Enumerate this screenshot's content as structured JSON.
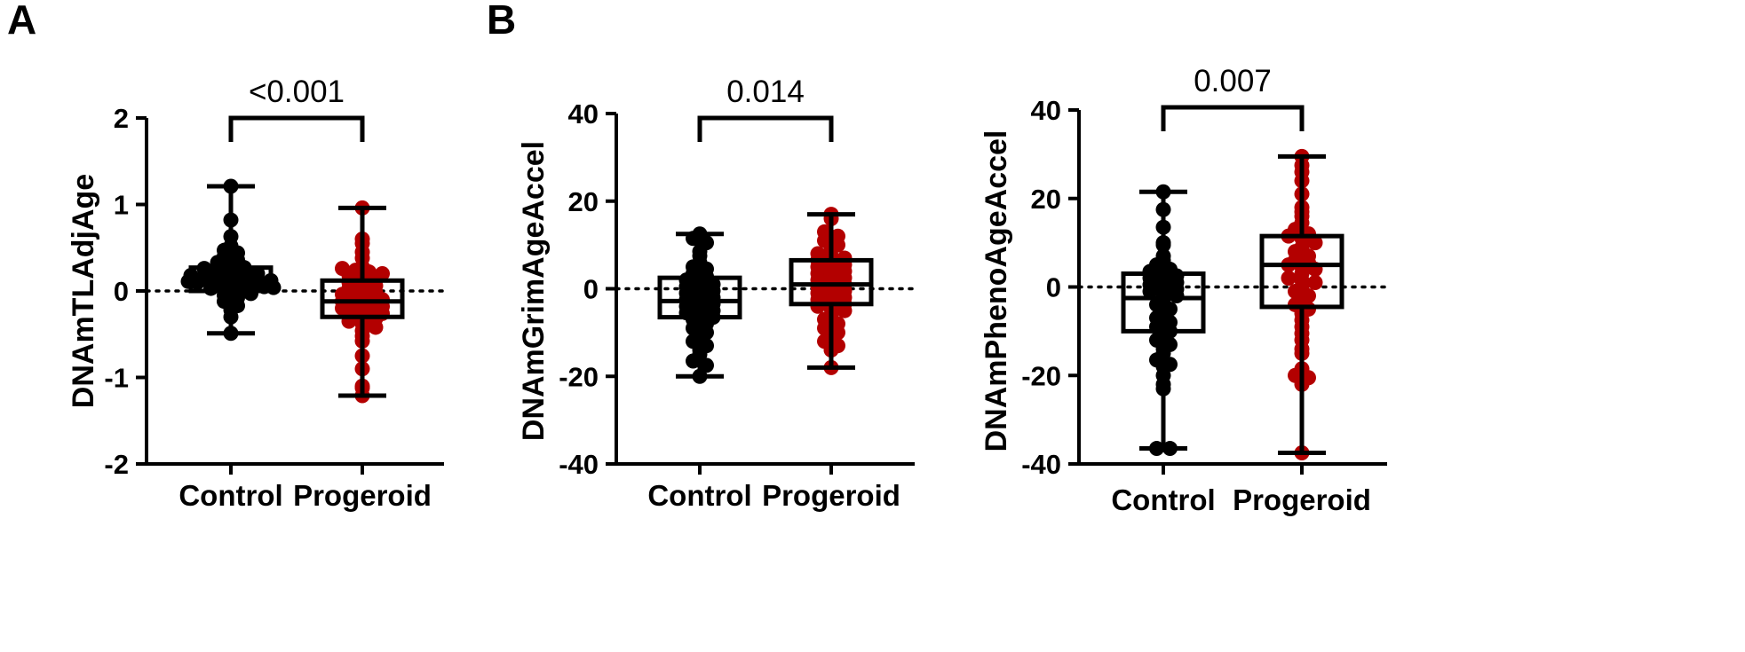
{
  "panel_letters": [
    "A",
    "B"
  ],
  "colors": {
    "control": "#000000",
    "progeroid": "#b30000",
    "axis": "#000000"
  },
  "chart_data": [
    {
      "type": "scatter",
      "subtype": "box-and-dot",
      "panel": "A",
      "ylabel": "DNAmTLAdjAge",
      "ylim": [
        -2,
        2
      ],
      "yticks": [
        -2,
        -1,
        0,
        1,
        2
      ],
      "ytick_labels": [
        "-2",
        "-1",
        "0",
        "1",
        "2"
      ],
      "reference_line": 0,
      "categories": [
        "Control",
        "Progeroid"
      ],
      "pvalue": "<0.001",
      "series": [
        {
          "name": "Control",
          "box": {
            "min": -0.49,
            "q1": 0.0,
            "median": 0.12,
            "q3": 0.27,
            "max": 1.21
          },
          "points": [
            1.21,
            0.82,
            0.63,
            0.52,
            0.47,
            0.44,
            0.4,
            0.36,
            0.33,
            0.3,
            0.27,
            0.26,
            0.24,
            0.22,
            0.21,
            0.2,
            0.18,
            0.17,
            0.16,
            0.15,
            0.14,
            0.13,
            0.12,
            0.11,
            0.1,
            0.09,
            0.08,
            0.07,
            0.06,
            0.05,
            0.04,
            0.03,
            0.01,
            -0.01,
            -0.03,
            -0.05,
            -0.08,
            -0.12,
            -0.17,
            -0.22,
            -0.3,
            -0.49
          ]
        },
        {
          "name": "Progeroid",
          "box": {
            "min": -1.21,
            "q1": -0.3,
            "median": -0.12,
            "q3": 0.12,
            "max": 0.96
          },
          "points": [
            0.96,
            0.6,
            0.55,
            0.45,
            0.38,
            0.28,
            0.26,
            0.24,
            0.22,
            0.2,
            0.18,
            0.15,
            0.13,
            0.1,
            0.08,
            0.06,
            0.03,
            0.01,
            -0.02,
            -0.04,
            -0.06,
            -0.08,
            -0.1,
            -0.12,
            -0.14,
            -0.16,
            -0.18,
            -0.2,
            -0.22,
            -0.24,
            -0.26,
            -0.28,
            -0.3,
            -0.32,
            -0.35,
            -0.38,
            -0.42,
            -0.46,
            -0.52,
            -0.58,
            -0.75,
            -0.9,
            -1.1,
            -1.12,
            -1.21
          ]
        }
      ]
    },
    {
      "type": "scatter",
      "subtype": "box-and-dot",
      "panel": "B",
      "ylabel": "DNAmGrimAgeAccel",
      "ylim": [
        -40,
        40
      ],
      "yticks": [
        -40,
        -20,
        0,
        20,
        40
      ],
      "ytick_labels": [
        "-40",
        "-20",
        "0",
        "20",
        "40"
      ],
      "reference_line": 0,
      "categories": [
        "Control",
        "Progeroid"
      ],
      "pvalue": "0.014",
      "series": [
        {
          "name": "Control",
          "box": {
            "min": -20,
            "q1": -6.5,
            "median": -2.8,
            "q3": 2.5,
            "max": 12.5
          },
          "points": [
            12.5,
            11.5,
            10.5,
            8.5,
            7.5,
            6.0,
            5.0,
            4.5,
            3.5,
            2.8,
            2.0,
            1.5,
            1.0,
            0.5,
            0.0,
            -0.5,
            -1.0,
            -1.5,
            -2.0,
            -2.5,
            -3.0,
            -3.5,
            -4.0,
            -4.5,
            -5.0,
            -5.5,
            -6.0,
            -6.5,
            -7.0,
            -8.0,
            -9.0,
            -10.0,
            -11.0,
            -12.0,
            -13.0,
            -14.0,
            -15.0,
            -16.5,
            -17.5,
            -20.0
          ]
        },
        {
          "name": "Progeroid",
          "box": {
            "min": -18,
            "q1": -3.5,
            "median": 1.0,
            "q3": 6.5,
            "max": 17
          },
          "points": [
            17.0,
            16.0,
            13.0,
            12.0,
            11.0,
            10.0,
            9.0,
            8.0,
            7.5,
            7.0,
            6.5,
            6.0,
            5.5,
            5.0,
            4.5,
            4.0,
            3.5,
            3.0,
            2.5,
            2.0,
            1.5,
            1.0,
            0.5,
            0.0,
            -0.5,
            -1.0,
            -1.5,
            -2.0,
            -2.5,
            -3.0,
            -3.5,
            -4.0,
            -4.5,
            -5.0,
            -6.0,
            -7.0,
            -8.0,
            -9.0,
            -10.0,
            -11.0,
            -12.0,
            -13.0,
            -14.0,
            -18.0
          ]
        }
      ]
    },
    {
      "type": "scatter",
      "subtype": "box-and-dot",
      "panel": "",
      "ylabel": "DNAmPhenoAgeAccel",
      "ylim": [
        -40,
        40
      ],
      "yticks": [
        -40,
        -20,
        0,
        20,
        40
      ],
      "ytick_labels": [
        "-40",
        "-20",
        "0",
        "20",
        "40"
      ],
      "reference_line": 0,
      "categories": [
        "Control",
        "Progeroid"
      ],
      "pvalue": "0.007",
      "series": [
        {
          "name": "Control",
          "box": {
            "min": -36.5,
            "q1": -10,
            "median": -2.5,
            "q3": 3,
            "max": 21.5
          },
          "points": [
            21.5,
            17.5,
            13.5,
            10.0,
            9.5,
            7.0,
            6.0,
            5.0,
            4.0,
            3.5,
            3.0,
            2.5,
            2.0,
            1.5,
            1.0,
            0.5,
            0.0,
            -0.5,
            -1.0,
            -1.5,
            -2.0,
            -3.0,
            -4.0,
            -5.0,
            -6.0,
            -7.0,
            -8.0,
            -9.0,
            -10.0,
            -11.0,
            -12.0,
            -13.0,
            -14.0,
            -15.0,
            -16.5,
            -17.5,
            -18.0,
            -20.0,
            -22.0,
            -23.0,
            -36.5,
            -36.5
          ]
        },
        {
          "name": "Progeroid",
          "box": {
            "min": -37.5,
            "q1": -4.5,
            "median": 5.0,
            "q3": 11.5,
            "max": 29.5
          },
          "points": [
            29.5,
            27.5,
            26.0,
            24.0,
            21.0,
            18.0,
            17.0,
            16.0,
            14.5,
            13.0,
            12.0,
            11.5,
            11.0,
            10.0,
            9.0,
            8.0,
            7.0,
            6.0,
            5.5,
            5.0,
            4.5,
            4.0,
            3.0,
            2.0,
            1.5,
            1.0,
            0.0,
            -1.0,
            -2.0,
            -3.0,
            -4.0,
            -5.0,
            -6.0,
            -7.5,
            -9.0,
            -10.5,
            -12.0,
            -14.0,
            -15.0,
            -18.5,
            -20.0,
            -20.5,
            -22.0,
            -37.5
          ]
        }
      ]
    }
  ]
}
